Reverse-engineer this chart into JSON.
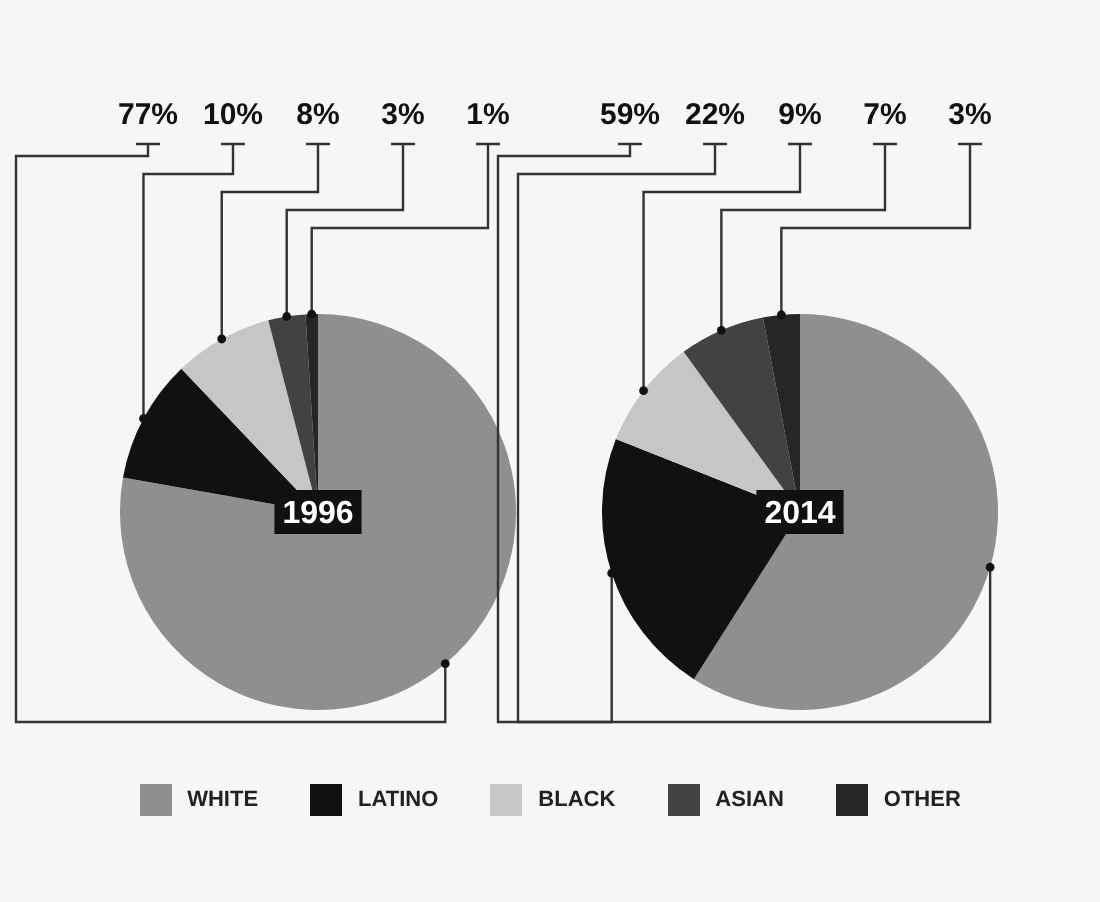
{
  "chart_data": {
    "type": "pie",
    "categories": [
      "WHITE",
      "LATINO",
      "BLACK",
      "ASIAN",
      "OTHER"
    ],
    "colors": [
      "#8f8f8f",
      "#111111",
      "#c6c6c6",
      "#424242",
      "#262626"
    ],
    "legend": "bottom",
    "series": [
      {
        "name": "1996",
        "values": [
          77,
          10,
          8,
          3,
          1
        ],
        "value_labels": [
          "77%",
          "10%",
          "8%",
          "3%",
          "1%"
        ]
      },
      {
        "name": "2014",
        "values": [
          59,
          22,
          9,
          7,
          3
        ],
        "value_labels": [
          "59%",
          "22%",
          "9%",
          "7%",
          "3%"
        ]
      }
    ]
  }
}
